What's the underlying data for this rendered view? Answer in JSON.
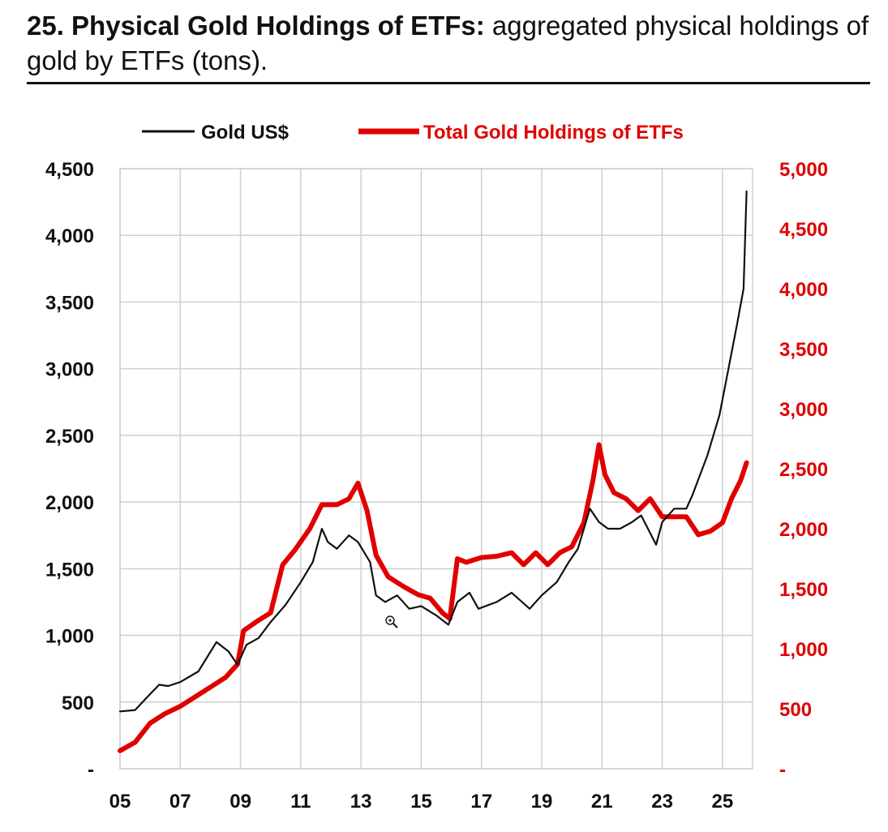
{
  "header": {
    "title_bold": "25. Physical Gold Holdings of ETFs:",
    "title_rest": " aggregated physical holdings of gold by ETFs (tons)."
  },
  "colors": {
    "gold": "#111111",
    "etf": "#e00000",
    "grid": "#cfcfcf"
  },
  "chart_data": {
    "type": "line",
    "title": "25. Physical Gold Holdings of ETFs: aggregated physical holdings of gold by ETFs (tons).",
    "grid": true,
    "legend_position": "top",
    "x_range": [
      2005,
      2026
    ],
    "x_tick_values": [
      2005,
      2007,
      2009,
      2011,
      2013,
      2015,
      2017,
      2019,
      2021,
      2023,
      2025
    ],
    "x_tick_labels": [
      "05",
      "07",
      "09",
      "11",
      "13",
      "15",
      "17",
      "19",
      "21",
      "23",
      "25"
    ],
    "y_left": {
      "range": [
        0,
        4500
      ],
      "tick_values": [
        0,
        500,
        1000,
        1500,
        2000,
        2500,
        3000,
        3500,
        4000,
        4500
      ],
      "tick_labels": [
        "-",
        "500",
        "1,000",
        "1,500",
        "2,000",
        "2,500",
        "3,000",
        "3,500",
        "4,000",
        "4,500"
      ]
    },
    "y_right": {
      "range": [
        0,
        5000
      ],
      "tick_values": [
        0,
        500,
        1000,
        1500,
        2000,
        2500,
        3000,
        3500,
        4000,
        4500,
        5000
      ],
      "tick_labels": [
        "-",
        "500",
        "1,000",
        "1,500",
        "2,000",
        "2,500",
        "3,000",
        "3,500",
        "4,000",
        "4,500",
        "5,000"
      ]
    },
    "series": [
      {
        "name": "Gold US$",
        "axis": "left",
        "x": [
          2005.0,
          2005.5,
          2006.0,
          2006.3,
          2006.6,
          2007.0,
          2007.6,
          2008.2,
          2008.6,
          2008.9,
          2009.2,
          2009.6,
          2010.0,
          2010.5,
          2011.0,
          2011.4,
          2011.7,
          2011.9,
          2012.2,
          2012.6,
          2012.9,
          2013.3,
          2013.5,
          2013.8,
          2014.2,
          2014.6,
          2015.0,
          2015.5,
          2015.9,
          2016.2,
          2016.6,
          2016.9,
          2017.5,
          2018.0,
          2018.6,
          2019.0,
          2019.5,
          2019.9,
          2020.2,
          2020.6,
          2020.9,
          2021.2,
          2021.6,
          2022.0,
          2022.3,
          2022.8,
          2023.0,
          2023.4,
          2023.8,
          2024.0,
          2024.5,
          2024.9,
          2025.2,
          2025.5,
          2025.7,
          2025.8
        ],
        "values": [
          430,
          440,
          560,
          630,
          620,
          650,
          730,
          950,
          880,
          780,
          930,
          980,
          1100,
          1230,
          1400,
          1550,
          1800,
          1700,
          1650,
          1750,
          1700,
          1550,
          1300,
          1250,
          1300,
          1200,
          1220,
          1150,
          1080,
          1250,
          1320,
          1200,
          1250,
          1320,
          1200,
          1300,
          1400,
          1550,
          1650,
          1950,
          1850,
          1800,
          1800,
          1850,
          1900,
          1680,
          1850,
          1950,
          1950,
          2050,
          2350,
          2650,
          3000,
          3350,
          3600,
          4330
        ]
      },
      {
        "name": "Total Gold Holdings of ETFs",
        "axis": "right",
        "x": [
          2005.0,
          2005.5,
          2006.0,
          2006.5,
          2007.0,
          2007.5,
          2008.0,
          2008.5,
          2008.9,
          2009.1,
          2009.5,
          2010.0,
          2010.4,
          2010.8,
          2011.3,
          2011.7,
          2012.2,
          2012.6,
          2012.9,
          2013.2,
          2013.5,
          2013.9,
          2014.4,
          2014.9,
          2015.3,
          2015.7,
          2015.95,
          2016.2,
          2016.5,
          2017.0,
          2017.5,
          2018.0,
          2018.4,
          2018.8,
          2019.2,
          2019.6,
          2020.0,
          2020.4,
          2020.7,
          2020.9,
          2021.1,
          2021.4,
          2021.8,
          2022.2,
          2022.6,
          2023.0,
          2023.4,
          2023.8,
          2024.2,
          2024.6,
          2025.0,
          2025.3,
          2025.6,
          2025.8
        ],
        "values": [
          150,
          220,
          380,
          460,
          520,
          600,
          680,
          760,
          870,
          1150,
          1220,
          1300,
          1700,
          1820,
          2000,
          2200,
          2200,
          2250,
          2380,
          2150,
          1780,
          1600,
          1520,
          1450,
          1420,
          1300,
          1250,
          1750,
          1720,
          1760,
          1770,
          1800,
          1700,
          1800,
          1700,
          1800,
          1850,
          2050,
          2400,
          2700,
          2450,
          2300,
          2250,
          2150,
          2250,
          2100,
          2100,
          2100,
          1950,
          1980,
          2050,
          2250,
          2400,
          2550
        ]
      }
    ]
  }
}
